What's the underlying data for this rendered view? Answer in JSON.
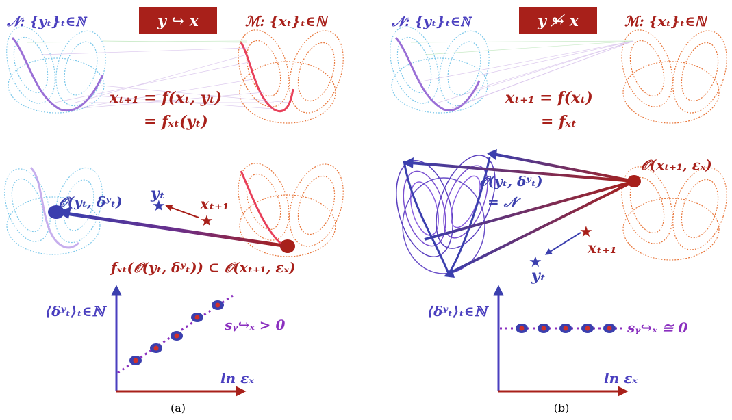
{
  "panel_a": {
    "caption": "(a)",
    "badge": "y ↪ x",
    "set_N": "𝒩: {yₜ}ₜ∈ℕ",
    "set_M": "ℳ: {xₜ}ₜ∈ℕ",
    "eq1": "xₜ₊₁ = f(xₜ, yₜ)",
    "eq2": "= fₓₜ(yₜ)",
    "ball_y": "𝒪(yₜ, δʸₜ)",
    "label_yt": "yₜ",
    "label_xt1": "xₜ₊₁",
    "inclusion": "fₓₜ(𝒪(yₜ, δʸₜ)) ⊂ 𝒪(xₜ₊₁, εₓ)",
    "ylabel": "⟨δʸₜ⟩ₜ∈ℕ",
    "xlabel": "ln εₓ",
    "slope_label": "sᵧ↪ₓ > 0"
  },
  "panel_b": {
    "caption": "(b)",
    "badge": "y ↬̸ x",
    "set_N": "𝒩: {yₜ}ₜ∈ℕ",
    "set_M": "ℳ: {xₜ}ₜ∈ℕ",
    "eq1": "xₜ₊₁ = f(xₜ)",
    "eq2": "= fₓₜ",
    "ball_x": "𝒪(xₜ₊₁, εₓ)",
    "ball_y": "𝒪(yₜ, δʸₜ)",
    "ball_y2": "= 𝒩",
    "label_xt1": "xₜ₊₁",
    "label_yt": "yₜ",
    "ylabel": "⟨δʸₜ⟩ₜ∈ℕ",
    "xlabel": "ln εₓ",
    "slope_label": "sᵧ↪ₓ ≅ 0"
  },
  "colors": {
    "light_blue": "#7cc8ea",
    "orange": "#e8763a",
    "dark_red": "#a8201a",
    "navy": "#3b3fae",
    "purple": "#8a2fbf",
    "badge_bg": "#a8201a"
  },
  "chart_data": [
    {
      "type": "scatter",
      "panel": "a",
      "xlabel": "ln εₓ",
      "ylabel": "⟨δʸₜ⟩ₜ∈ℕ",
      "x": [
        1,
        2,
        3,
        4,
        5
      ],
      "values": [
        1,
        2,
        3,
        4.5,
        5.5
      ],
      "trend": "increasing"
    },
    {
      "type": "scatter",
      "panel": "b",
      "xlabel": "ln εₓ",
      "ylabel": "⟨δʸₜ⟩ₜ∈ℕ",
      "x": [
        1,
        2,
        3,
        4,
        5
      ],
      "values": [
        3,
        3,
        3,
        3,
        3
      ],
      "trend": "flat"
    }
  ]
}
